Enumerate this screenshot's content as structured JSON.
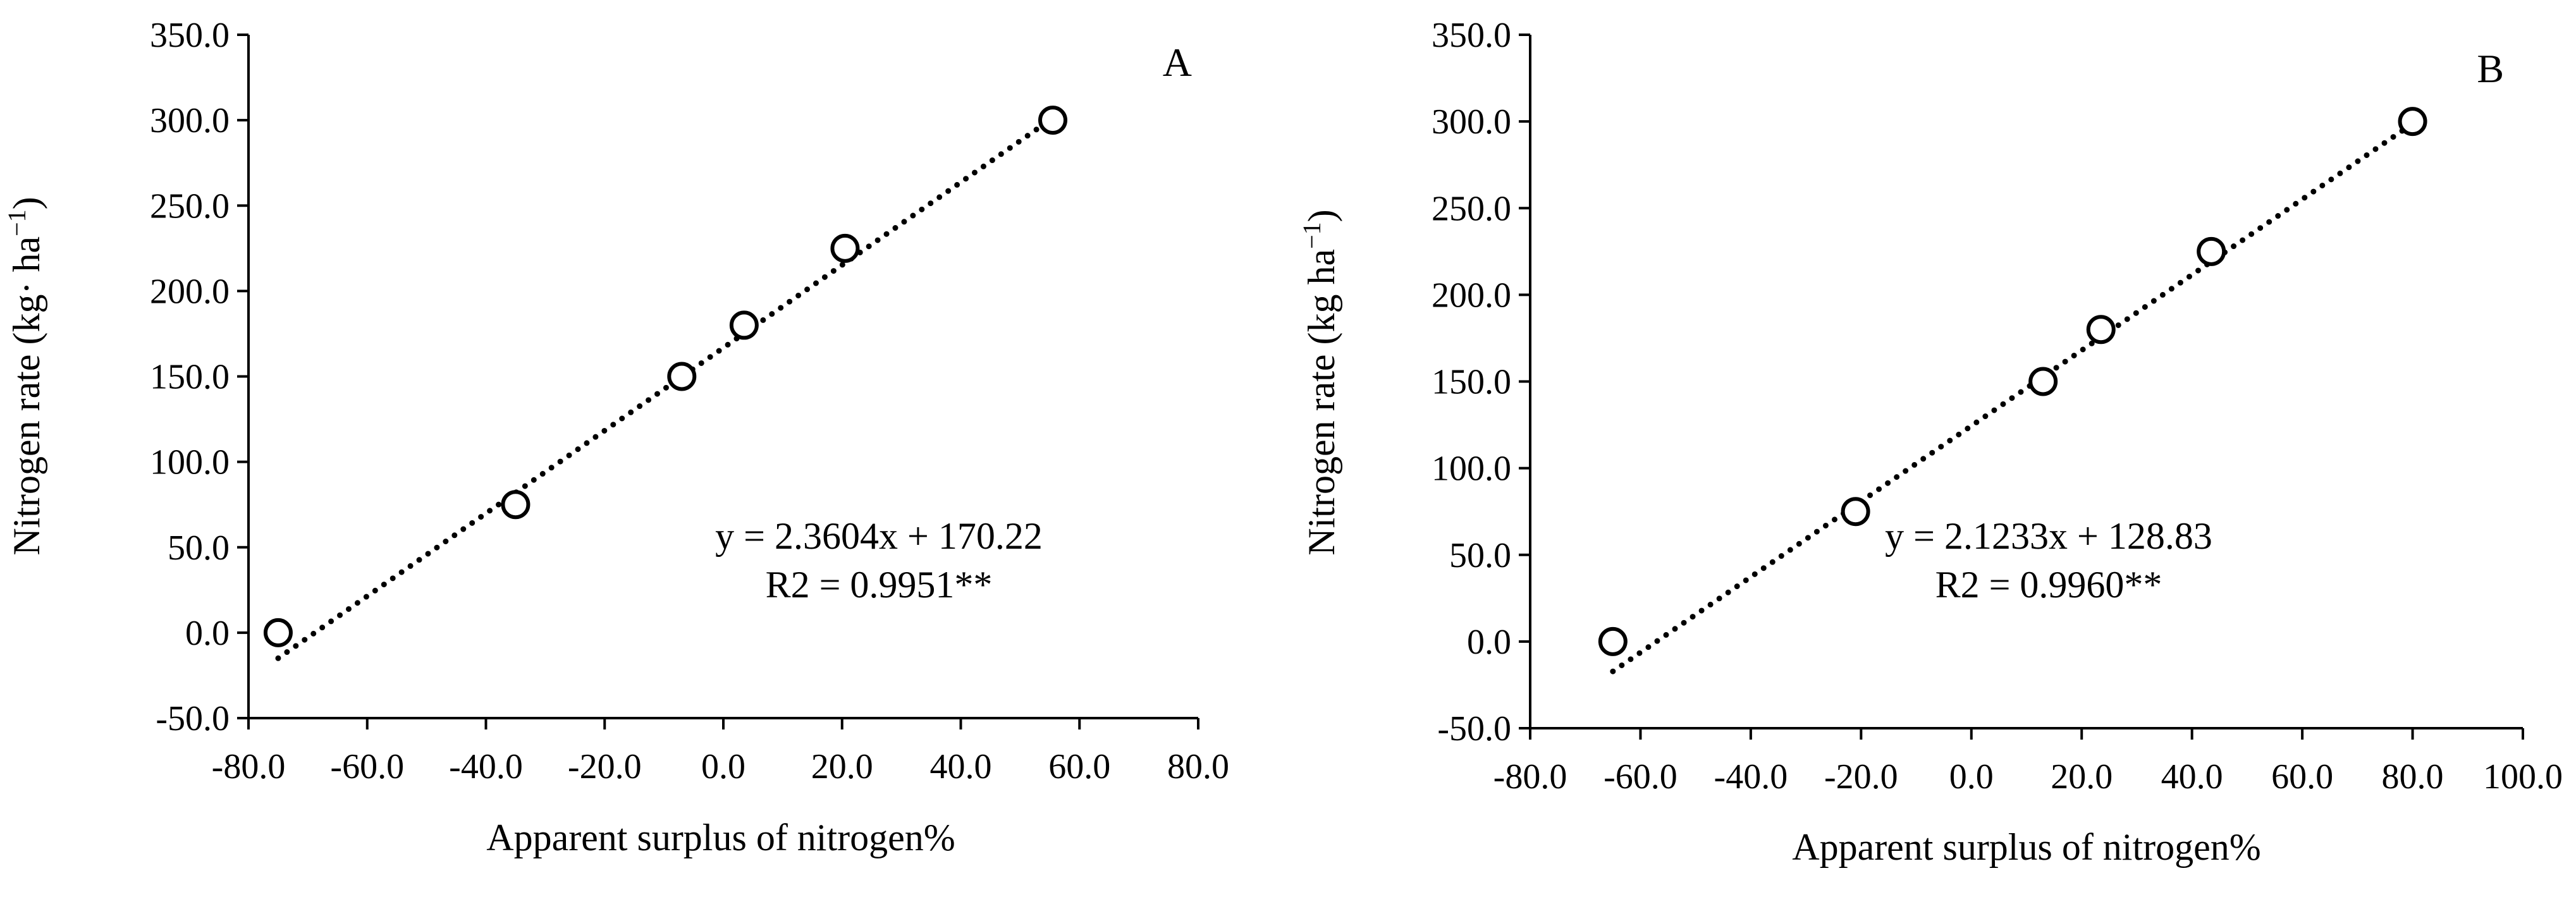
{
  "chart_data": [
    {
      "type": "scatter",
      "panel_label": "A",
      "xlabel": "Apparent surplus of nitrogen%",
      "ylabel": "Nitrogen rate (kg· ha",
      "ylabel_sup": "−1",
      "ylabel_close": ")",
      "xlim": [
        -80,
        80
      ],
      "ylim": [
        -50,
        350
      ],
      "xticks": [
        -80,
        -60,
        -40,
        -20,
        0,
        20,
        40,
        60,
        80
      ],
      "xtick_labels": [
        "-80.0",
        "-60.0",
        "-40.0",
        "-20.0",
        "0.0",
        "20.0",
        "40.0",
        "60.0",
        "80.0"
      ],
      "yticks": [
        -50,
        0,
        50,
        100,
        150,
        200,
        250,
        300,
        350
      ],
      "ytick_labels": [
        "-50.0",
        "0.0",
        "50.0",
        "100.0",
        "150.0",
        "200.0",
        "250.0",
        "300.0",
        "350.0"
      ],
      "grid": false,
      "points": [
        {
          "x": -75.0,
          "y": 0
        },
        {
          "x": -35.0,
          "y": 75
        },
        {
          "x": -7.0,
          "y": 150
        },
        {
          "x": 3.5,
          "y": 180
        },
        {
          "x": 20.5,
          "y": 225
        },
        {
          "x": 55.5,
          "y": 300
        }
      ],
      "trendline": {
        "style": "dotted",
        "slope": 2.3604,
        "intercept": 170.22,
        "x_start": -75.0,
        "x_end": 55.5
      },
      "equation": "y = 2.3604x + 170.22",
      "r2": "R2 = 0.9951**"
    },
    {
      "type": "scatter",
      "panel_label": "B",
      "xlabel": "Apparent surplus of nitrogen%",
      "ylabel": "Nitrogen rate (kg ha",
      "ylabel_sup": "−1",
      "ylabel_close": ")",
      "xlim": [
        -80,
        100
      ],
      "ylim": [
        -50,
        350
      ],
      "xticks": [
        -80,
        -60,
        -40,
        -20,
        0,
        20,
        40,
        60,
        80,
        100
      ],
      "xtick_labels": [
        "-80.0",
        "-60.0",
        "-40.0",
        "-20.0",
        "0.0",
        "20.0",
        "40.0",
        "60.0",
        "80.0",
        "100.0"
      ],
      "yticks": [
        -50,
        0,
        50,
        100,
        150,
        200,
        250,
        300,
        350
      ],
      "ytick_labels": [
        "-50.0",
        "0.0",
        "50.0",
        "100.0",
        "150.0",
        "200.0",
        "250.0",
        "300.0",
        "350.0"
      ],
      "grid": false,
      "points": [
        {
          "x": -65.0,
          "y": 0
        },
        {
          "x": -21.0,
          "y": 75
        },
        {
          "x": 13.0,
          "y": 150
        },
        {
          "x": 23.5,
          "y": 180
        },
        {
          "x": 43.5,
          "y": 225
        },
        {
          "x": 80.0,
          "y": 300
        }
      ],
      "trendline": {
        "style": "dotted",
        "slope": 2.1233,
        "intercept": 128.83,
        "x_start": -65.0,
        "x_end": 80.0
      },
      "equation": "y = 2.1233x + 128.83",
      "r2": "R2 = 0.9960**"
    }
  ]
}
